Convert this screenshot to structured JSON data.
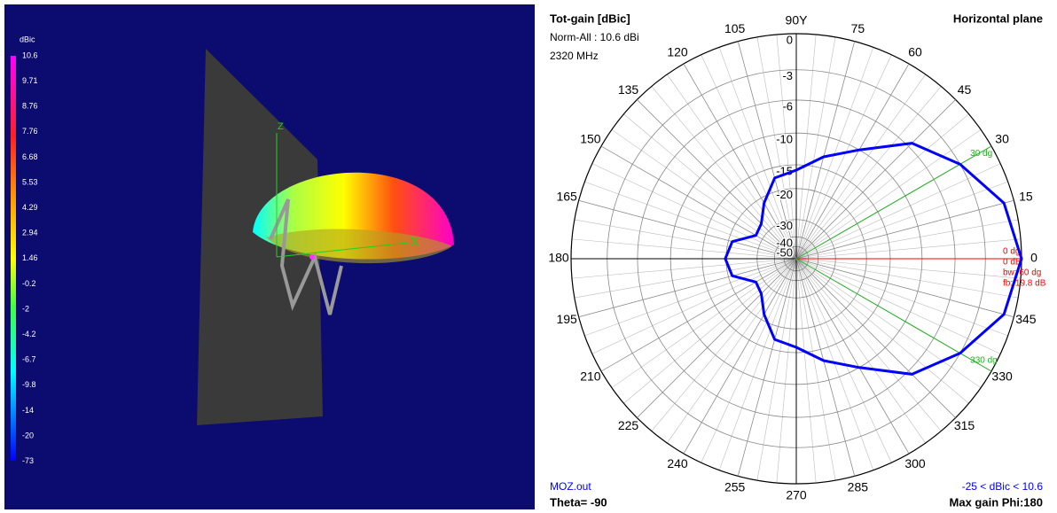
{
  "view3d": {
    "unit": "dBic",
    "scale": [
      "10.6",
      "9.71",
      "8.76",
      "7.76",
      "6.68",
      "5.53",
      "4.29",
      "2.94",
      "1.46",
      "-0.2",
      "-2",
      "-4.2",
      "-6.7",
      "-9.8",
      "-14",
      "-20",
      "-73"
    ],
    "axis_z": "Z",
    "axis_x": "X"
  },
  "polar": {
    "title": "Tot-gain [dBic]",
    "norm": "Norm-All : 10.6 dBi",
    "freq": "2320 MHz",
    "plane": "Horizontal plane",
    "file": "MOZ.out",
    "theta": "Theta= -90",
    "range": "-25 < dBic < 10.6",
    "max_gain": "Max gain Phi:180",
    "angle_ticks": [
      0,
      15,
      30,
      45,
      60,
      75,
      {
        "value": 90,
        "label": "90Y"
      },
      105,
      120,
      135,
      150,
      165,
      180,
      195,
      210,
      225,
      240,
      255,
      270,
      285,
      300,
      315,
      330,
      345
    ],
    "rticks": [
      0,
      -3,
      -6,
      -10,
      -15,
      -20,
      -30,
      -40,
      -50
    ],
    "pattern": {
      "angles": [
        0,
        15,
        30,
        45,
        60,
        75,
        90,
        105,
        120,
        135,
        150,
        165,
        180,
        195,
        210,
        225,
        240,
        255,
        270,
        285,
        300,
        315,
        330,
        345
      ],
      "values": [
        0,
        -0.8,
        -3,
        -5.5,
        -10,
        -13,
        -16,
        -17,
        -21.5,
        -26,
        -27,
        -21,
        -19.8,
        -21,
        -27,
        -26,
        -21.5,
        -17,
        -16,
        -13,
        -10,
        -5.5,
        -3,
        -0.8
      ]
    },
    "main": {
      "angle": 0,
      "labels": [
        "0 dg",
        "0 dB",
        "bw: 60 dg",
        "fb: 19.8 dB"
      ]
    },
    "markers": [
      {
        "angle": 30,
        "label": "30 dg"
      },
      {
        "angle": 330,
        "label": "330 dg"
      }
    ]
  }
}
